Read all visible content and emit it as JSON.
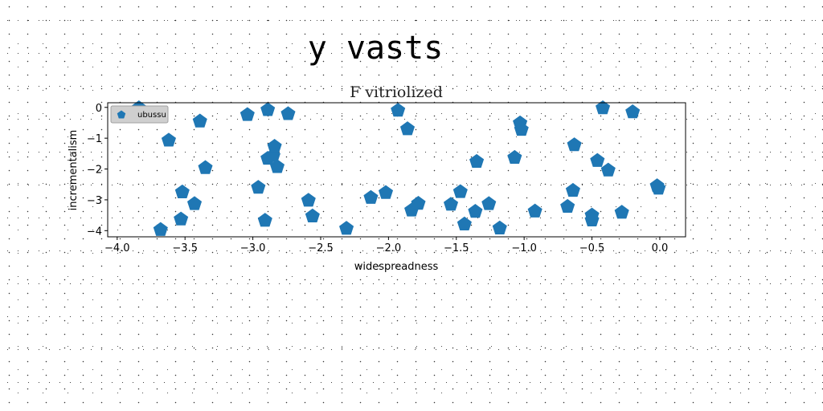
{
  "page": {
    "title": "y vasts"
  },
  "chart_data": {
    "type": "scatter",
    "title": "F vitriolized",
    "xlabel": "widespreadness",
    "ylabel": "incrementalism",
    "xlim": [
      -4.07,
      0.19
    ],
    "ylim": [
      -4.2,
      0.15
    ],
    "xticks": [
      -4.0,
      -3.5,
      -3.0,
      -2.5,
      -2.0,
      -1.5,
      -1.0,
      -0.5,
      0.0
    ],
    "xtick_labels": [
      "−4.0",
      "−3.5",
      "−3.0",
      "−2.5",
      "−2.0",
      "−1.5",
      "−1.0",
      "−0.5",
      "0.0"
    ],
    "yticks": [
      0,
      -1,
      -2,
      -3,
      -4
    ],
    "ytick_labels": [
      "0",
      "−1",
      "−2",
      "−3",
      "−4"
    ],
    "grid": false,
    "legend": {
      "position": "upper left",
      "entries": [
        "ubussu"
      ]
    },
    "series": [
      {
        "name": "ubussu",
        "color": "#1f77b4",
        "marker": "pentagon",
        "points": [
          [
            -3.84,
            -0.02
          ],
          [
            -3.68,
            -3.97
          ],
          [
            -3.62,
            -1.07
          ],
          [
            -3.53,
            -3.63
          ],
          [
            -3.52,
            -2.75
          ],
          [
            -3.43,
            -3.13
          ],
          [
            -3.39,
            -0.45
          ],
          [
            -3.35,
            -1.96
          ],
          [
            -3.04,
            -0.24
          ],
          [
            -2.96,
            -2.6
          ],
          [
            -2.91,
            -3.67
          ],
          [
            -2.89,
            -0.08
          ],
          [
            -2.89,
            -1.66
          ],
          [
            -2.85,
            -1.57
          ],
          [
            -2.84,
            -1.27
          ],
          [
            -2.82,
            -1.93
          ],
          [
            -2.74,
            -0.21
          ],
          [
            -2.59,
            -3.02
          ],
          [
            -2.56,
            -3.53
          ],
          [
            -2.31,
            -3.93
          ],
          [
            -2.13,
            -2.93
          ],
          [
            -2.02,
            -2.77
          ],
          [
            -1.93,
            -0.1
          ],
          [
            -1.86,
            -0.7
          ],
          [
            -1.83,
            -3.34
          ],
          [
            -1.78,
            -3.12
          ],
          [
            -1.54,
            -3.15
          ],
          [
            -1.47,
            -2.74
          ],
          [
            -1.44,
            -3.79
          ],
          [
            -1.36,
            -3.38
          ],
          [
            -1.35,
            -1.76
          ],
          [
            -1.26,
            -3.13
          ],
          [
            -1.18,
            -3.92
          ],
          [
            -1.07,
            -1.63
          ],
          [
            -1.03,
            -0.51
          ],
          [
            -1.02,
            -0.72
          ],
          [
            -0.92,
            -3.37
          ],
          [
            -0.68,
            -3.22
          ],
          [
            -0.64,
            -2.7
          ],
          [
            -0.63,
            -1.22
          ],
          [
            -0.5,
            -3.5
          ],
          [
            -0.5,
            -3.66
          ],
          [
            -0.46,
            -1.73
          ],
          [
            -0.42,
            -0.02
          ],
          [
            -0.38,
            -2.04
          ],
          [
            -0.28,
            -3.41
          ],
          [
            -0.2,
            -0.15
          ],
          [
            -0.02,
            -2.55
          ],
          [
            -0.01,
            -2.63
          ]
        ]
      }
    ]
  }
}
